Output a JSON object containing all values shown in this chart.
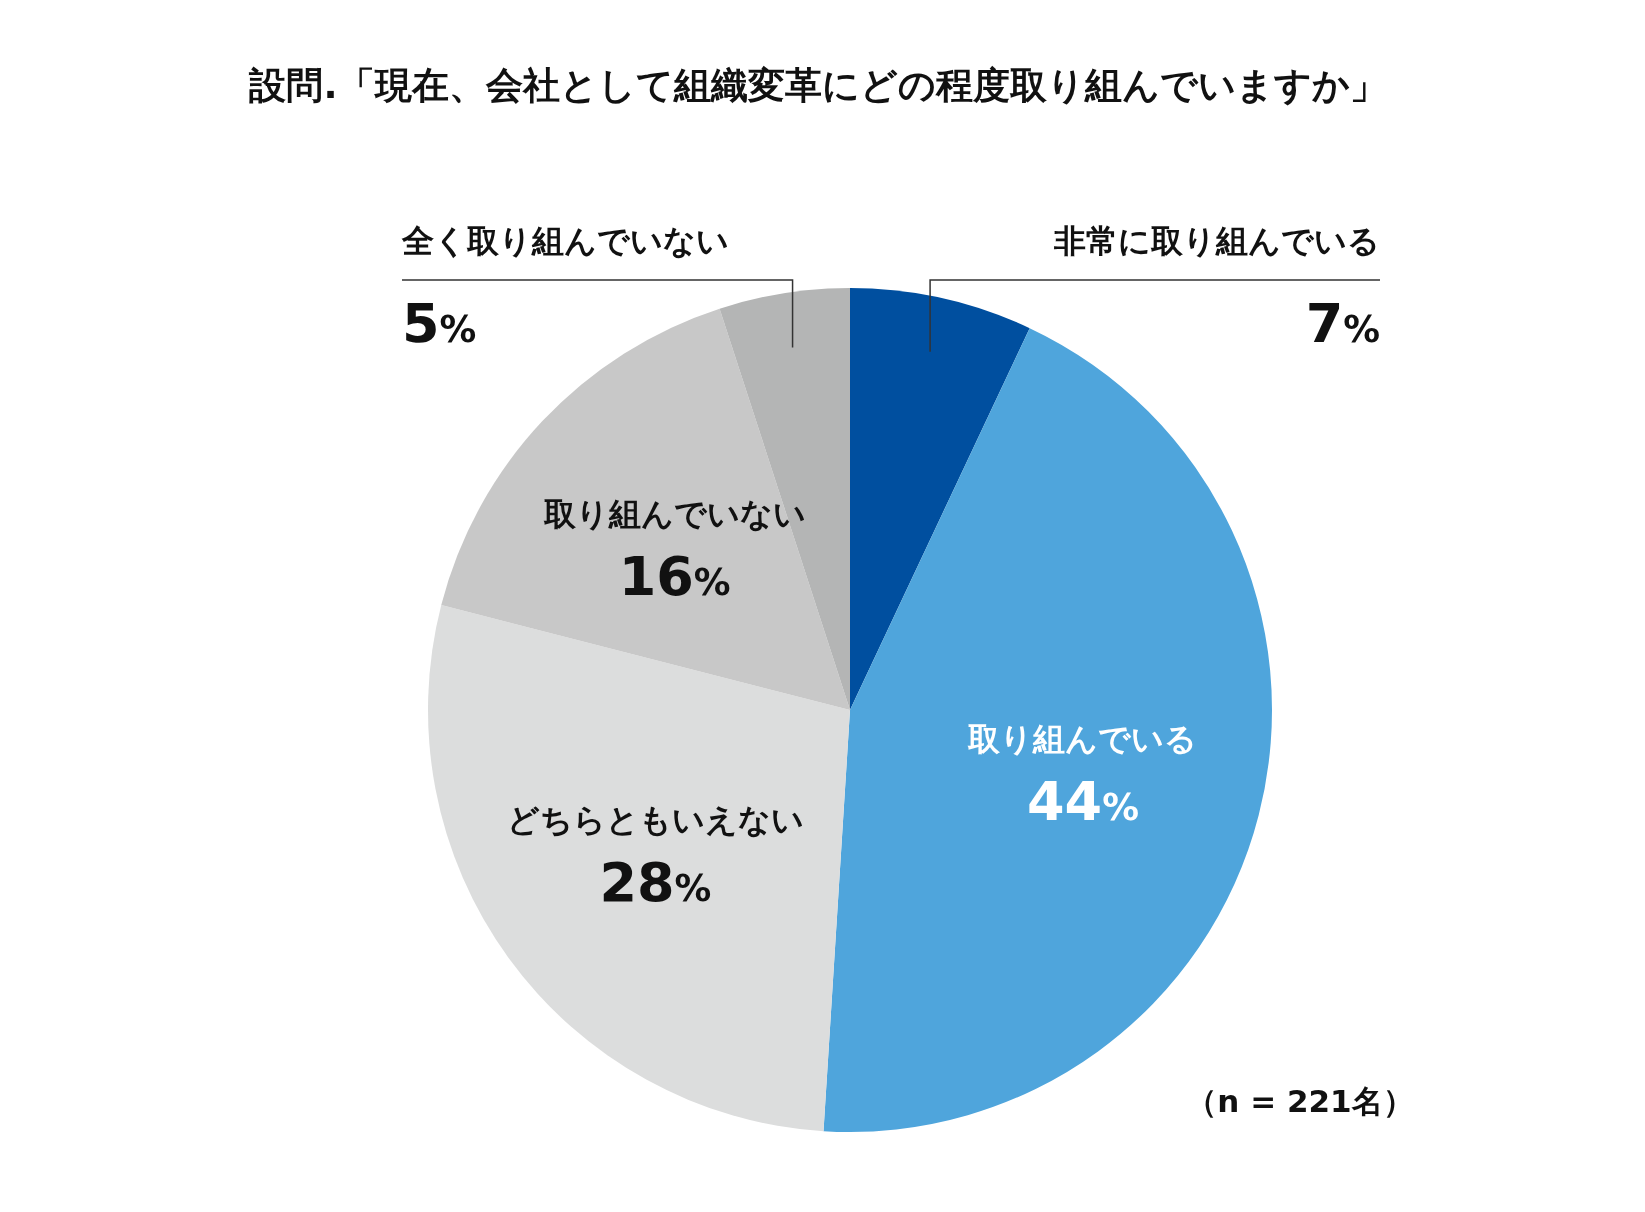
{
  "chart_data": {
    "type": "pie",
    "title": "設問.「現在、会社として組織変革にどの程度取り組んでいますか」",
    "categories": [
      "非常に取り組んでいる",
      "取り組んでいる",
      "どちらともいえない",
      "取り組んでいない",
      "全く取り組んでいない"
    ],
    "values": [
      7,
      44,
      28,
      16,
      5
    ],
    "colors": [
      "#004f9f",
      "#4fa5dc",
      "#dcdddd",
      "#c8c8c8",
      "#b4b5b5"
    ],
    "value_labels": [
      "7%",
      "44%",
      "28%",
      "16%",
      "5%"
    ],
    "annotations": [
      "（n = 221名）"
    ]
  }
}
